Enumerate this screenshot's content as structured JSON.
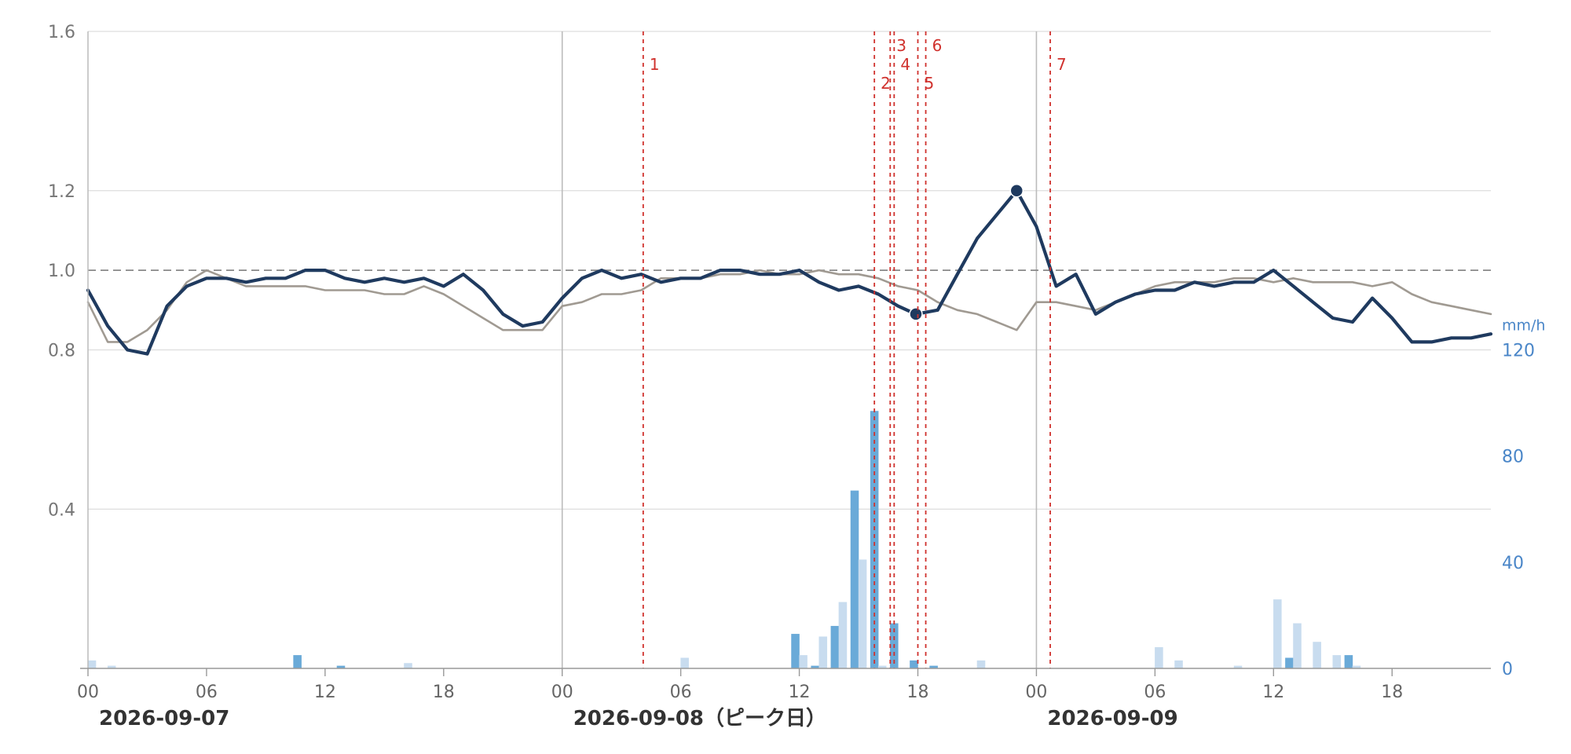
{
  "chart_data": {
    "type": "line",
    "left_axis": {
      "min": 0.0,
      "max": 1.6,
      "ticks": [
        "0.4",
        "0.8",
        "1.0",
        "1.2",
        "1.6"
      ],
      "tick_values": [
        0.4,
        0.8,
        1.0,
        1.2,
        1.6
      ]
    },
    "right_axis": {
      "unit": "mm/h",
      "min": 0,
      "max": 120,
      "ticks": [
        "0",
        "40",
        "80",
        "120"
      ],
      "tick_values": [
        0,
        40,
        80,
        120
      ]
    },
    "x_ticks": [
      "00",
      "06",
      "12",
      "18",
      "00",
      "06",
      "12",
      "18",
      "00",
      "06",
      "12",
      "18"
    ],
    "x_tick_hours": [
      0,
      6,
      12,
      18,
      24,
      30,
      36,
      42,
      48,
      54,
      60,
      66
    ],
    "x_range_hours": [
      0,
      71
    ],
    "date_labels": [
      "2026-09-07",
      "2026-09-08（ピーク日）",
      "2026-09-09"
    ],
    "date_label_hours": [
      0,
      24,
      48
    ],
    "day_boundary_hours": [
      24,
      48
    ],
    "reference_line": 1.0,
    "colors": {
      "primary": "#1f3a5f",
      "secondary": "#a09a92",
      "bar_dark": "#6aaad8",
      "bar_light": "#c8dcef",
      "event": "#d0312d",
      "grid": "#dddddd",
      "day_line": "#bbbbbb",
      "reference": "#888888"
    },
    "events": [
      {
        "label": "1",
        "hour": 4.1
      },
      {
        "label": "2",
        "hour": 15.8
      },
      {
        "label": "3",
        "hour": 16.6
      },
      {
        "label": "4",
        "hour": 16.8
      },
      {
        "label": "5",
        "hour": 18.0
      },
      {
        "label": "6",
        "hour": 18.4
      },
      {
        "label": "7",
        "hour": 24.7
      }
    ],
    "event_hour_offset": 24,
    "series": [
      {
        "role": "primary",
        "x": [
          0,
          1,
          2,
          3,
          4,
          5,
          6,
          7,
          8,
          9,
          10,
          11,
          12,
          13,
          14,
          15,
          16,
          17,
          18,
          19,
          20,
          21,
          22,
          23,
          24,
          25,
          26,
          27,
          28,
          29,
          30,
          31,
          32,
          33,
          34,
          35,
          36,
          37,
          38,
          39,
          40,
          41,
          41.9,
          43,
          44,
          45,
          46,
          47,
          48,
          49,
          50,
          51,
          52,
          53,
          54,
          55,
          56,
          57,
          58,
          59,
          60,
          61,
          62,
          63,
          64,
          65,
          66,
          67,
          68,
          69,
          70,
          71
        ],
        "y": [
          0.95,
          0.86,
          0.8,
          0.79,
          0.91,
          0.96,
          0.98,
          0.98,
          0.97,
          0.98,
          0.98,
          1.0,
          1.0,
          0.98,
          0.97,
          0.98,
          0.97,
          0.98,
          0.96,
          0.99,
          0.95,
          0.89,
          0.86,
          0.87,
          0.93,
          0.98,
          1.0,
          0.98,
          0.99,
          0.97,
          0.98,
          0.98,
          1.0,
          1.0,
          0.99,
          0.99,
          1.0,
          0.97,
          0.95,
          0.96,
          0.94,
          0.91,
          0.89,
          0.9,
          0.99,
          1.08,
          1.14,
          1.2,
          1.11,
          0.96,
          0.99,
          0.89,
          0.92,
          0.94,
          0.95,
          0.95,
          0.97,
          0.96,
          0.97,
          0.97,
          1.0,
          0.96,
          0.92,
          0.88,
          0.87,
          0.93,
          0.88,
          0.82,
          0.82,
          0.83,
          0.83,
          0.84
        ],
        "markers": [
          {
            "x": 41.9,
            "y": 0.89
          },
          {
            "x": 47,
            "y": 1.2
          }
        ]
      },
      {
        "role": "secondary",
        "x": [
          0,
          1,
          2,
          3,
          4,
          5,
          6,
          7,
          8,
          9,
          10,
          11,
          12,
          13,
          14,
          15,
          16,
          17,
          18,
          19,
          20,
          21,
          22,
          23,
          24,
          25,
          26,
          27,
          28,
          29,
          30,
          31,
          32,
          33,
          34,
          35,
          36,
          37,
          38,
          39,
          40,
          41,
          42,
          43,
          44,
          45,
          46,
          47,
          48,
          49,
          50,
          51,
          52,
          53,
          54,
          55,
          56,
          57,
          58,
          59,
          60,
          61,
          62,
          63,
          64,
          65,
          66,
          67,
          68,
          69,
          70,
          71
        ],
        "y": [
          0.92,
          0.82,
          0.82,
          0.85,
          0.9,
          0.97,
          1.0,
          0.98,
          0.96,
          0.96,
          0.96,
          0.96,
          0.95,
          0.95,
          0.95,
          0.94,
          0.94,
          0.96,
          0.94,
          0.91,
          0.88,
          0.85,
          0.85,
          0.85,
          0.91,
          0.92,
          0.94,
          0.94,
          0.95,
          0.98,
          0.98,
          0.98,
          0.99,
          0.99,
          1.0,
          0.99,
          0.99,
          1.0,
          0.99,
          0.99,
          0.98,
          0.96,
          0.95,
          0.92,
          0.9,
          0.89,
          0.87,
          0.85,
          0.92,
          0.92,
          0.91,
          0.9,
          0.92,
          0.94,
          0.96,
          0.97,
          0.97,
          0.97,
          0.98,
          0.98,
          0.97,
          0.98,
          0.97,
          0.97,
          0.97,
          0.96,
          0.97,
          0.94,
          0.92,
          0.91,
          0.9,
          0.89
        ]
      }
    ],
    "rain_bars": [
      {
        "x": 0.2,
        "v": 3,
        "tone": "light"
      },
      {
        "x": 1.2,
        "v": 1,
        "tone": "light"
      },
      {
        "x": 10.6,
        "v": 5,
        "tone": "dark"
      },
      {
        "x": 12.8,
        "v": 1,
        "tone": "dark"
      },
      {
        "x": 16.2,
        "v": 2,
        "tone": "light"
      },
      {
        "x": 30.2,
        "v": 4,
        "tone": "light"
      },
      {
        "x": 35.8,
        "v": 13,
        "tone": "dark"
      },
      {
        "x": 36.2,
        "v": 5,
        "tone": "light"
      },
      {
        "x": 36.8,
        "v": 1,
        "tone": "dark"
      },
      {
        "x": 37.2,
        "v": 12,
        "tone": "light"
      },
      {
        "x": 37.8,
        "v": 16,
        "tone": "dark"
      },
      {
        "x": 38.2,
        "v": 25,
        "tone": "light"
      },
      {
        "x": 38.8,
        "v": 67,
        "tone": "dark"
      },
      {
        "x": 39.2,
        "v": 41,
        "tone": "light"
      },
      {
        "x": 39.8,
        "v": 97,
        "tone": "dark"
      },
      {
        "x": 40.2,
        "v": 1,
        "tone": "light"
      },
      {
        "x": 40.8,
        "v": 17,
        "tone": "dark"
      },
      {
        "x": 41.8,
        "v": 3,
        "tone": "dark"
      },
      {
        "x": 42.8,
        "v": 1,
        "tone": "dark"
      },
      {
        "x": 45.2,
        "v": 3,
        "tone": "light"
      },
      {
        "x": 54.2,
        "v": 8,
        "tone": "light"
      },
      {
        "x": 55.2,
        "v": 3,
        "tone": "light"
      },
      {
        "x": 58.2,
        "v": 1,
        "tone": "light"
      },
      {
        "x": 60.2,
        "v": 26,
        "tone": "light"
      },
      {
        "x": 60.8,
        "v": 4,
        "tone": "dark"
      },
      {
        "x": 61.2,
        "v": 17,
        "tone": "light"
      },
      {
        "x": 62.2,
        "v": 10,
        "tone": "light"
      },
      {
        "x": 63.2,
        "v": 5,
        "tone": "light"
      },
      {
        "x": 63.8,
        "v": 5,
        "tone": "dark"
      },
      {
        "x": 64.2,
        "v": 1,
        "tone": "light"
      }
    ]
  }
}
